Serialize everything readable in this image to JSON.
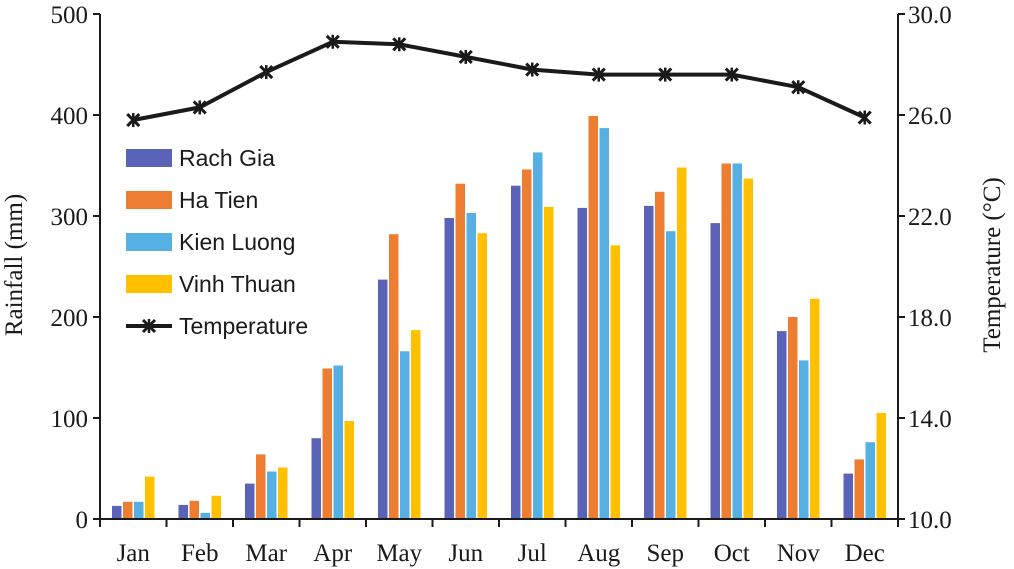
{
  "chart_data": {
    "type": "bar",
    "categories": [
      "Jan",
      "Feb",
      "Mar",
      "Apr",
      "May",
      "Jun",
      "Jul",
      "Aug",
      "Sep",
      "Oct",
      "Nov",
      "Dec"
    ],
    "series": [
      {
        "name": "Rach Gia",
        "type": "bar",
        "axis": "left",
        "color": "#5b63b8",
        "values": [
          13,
          14,
          35,
          80,
          237,
          298,
          330,
          308,
          310,
          293,
          186,
          45
        ]
      },
      {
        "name": "Ha Tien",
        "type": "bar",
        "axis": "left",
        "color": "#ed7d31",
        "values": [
          17,
          18,
          64,
          149,
          282,
          332,
          346,
          399,
          324,
          352,
          200,
          59
        ]
      },
      {
        "name": "Kien Luong",
        "type": "bar",
        "axis": "left",
        "color": "#56b0e4",
        "values": [
          17,
          6,
          47,
          152,
          166,
          303,
          363,
          387,
          285,
          352,
          157,
          76
        ]
      },
      {
        "name": "Vinh Thuan",
        "type": "bar",
        "axis": "left",
        "color": "#ffc000",
        "values": [
          42,
          23,
          51,
          97,
          187,
          283,
          309,
          271,
          348,
          337,
          218,
          105
        ]
      },
      {
        "name": "Temperature",
        "type": "line",
        "axis": "right",
        "color": "#1a1a1a",
        "marker": "star",
        "values": [
          25.8,
          26.3,
          27.7,
          28.9,
          28.8,
          28.3,
          27.8,
          27.6,
          27.6,
          27.6,
          27.1,
          25.9
        ]
      }
    ],
    "ylabel": "Rainfall (mm)",
    "y2label": "Temperature (°C)",
    "ylim": [
      0,
      500
    ],
    "y2lim": [
      10.0,
      30.0
    ],
    "yticks": [
      "0",
      "100",
      "200",
      "300",
      "400",
      "500"
    ],
    "y2ticks": [
      "10.0",
      "14.0",
      "18.0",
      "22.0",
      "26.0",
      "30.0"
    ],
    "grid": false,
    "legend_position": "left, inside plot"
  }
}
